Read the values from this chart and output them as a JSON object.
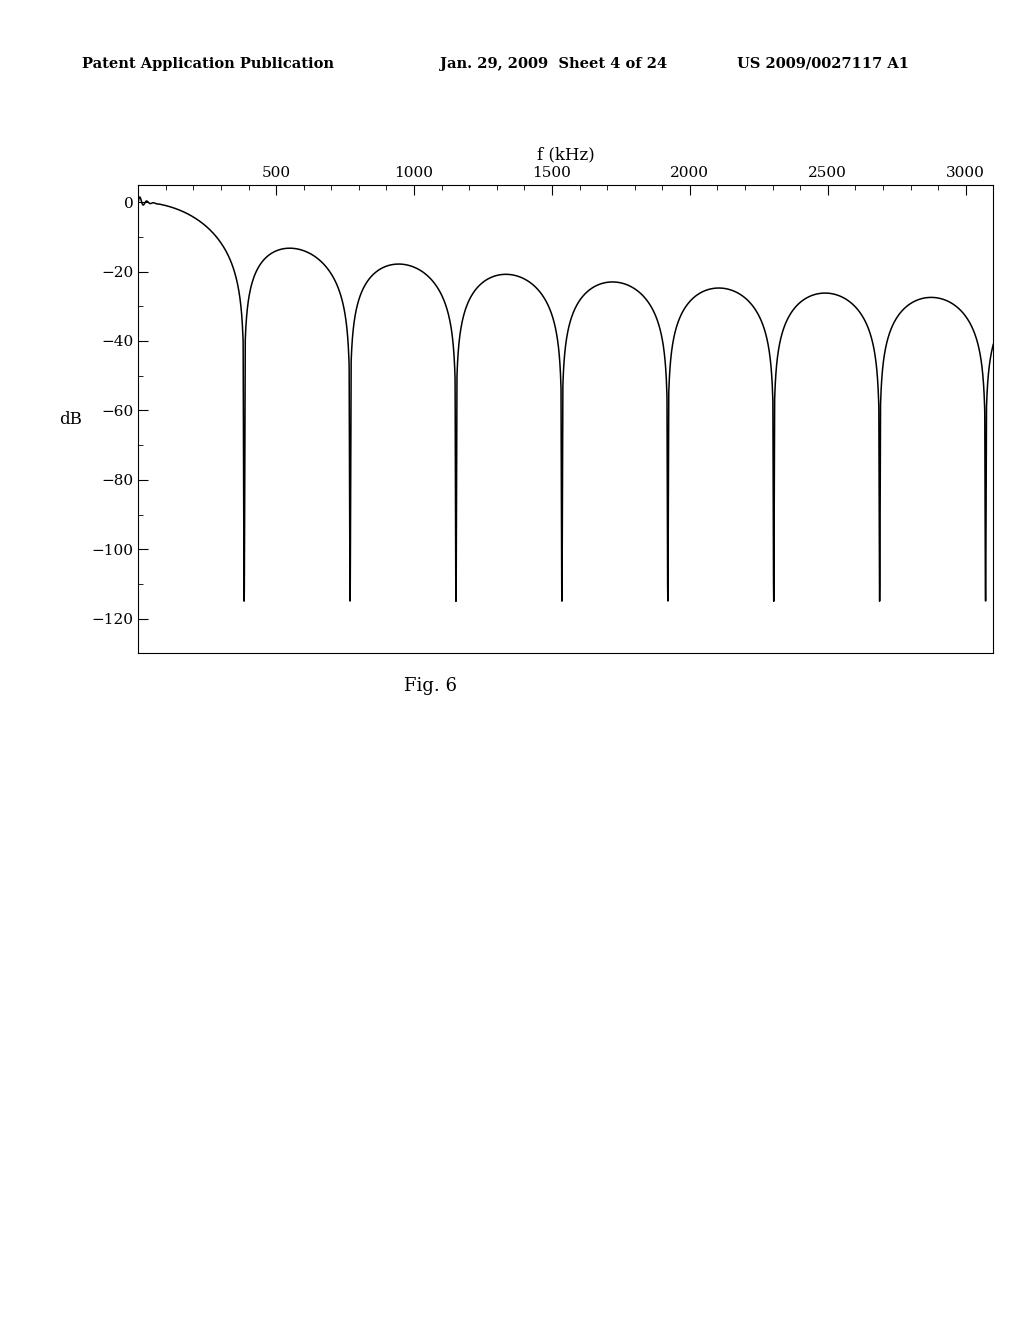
{
  "title_header_left": "Patent Application Publication",
  "title_header_mid": "Jan. 29, 2009  Sheet 4 of 24",
  "title_header_right": "US 2009/0027117 A1",
  "fig_label": "Fig. 6",
  "xlabel": "f (kHz)",
  "ylabel": "dB",
  "xlim": [
    0,
    3200
  ],
  "ylim": [
    -130,
    5
  ],
  "xticks": [
    500,
    1000,
    1500,
    2000,
    2500,
    3000
  ],
  "yticks": [
    0,
    -20,
    -40,
    -60,
    -80,
    -100,
    -120
  ],
  "background_color": "#ffffff",
  "line_color": "#000000",
  "switching_freq_khz": 384,
  "num_points": 12000,
  "notch_depth": -120
}
